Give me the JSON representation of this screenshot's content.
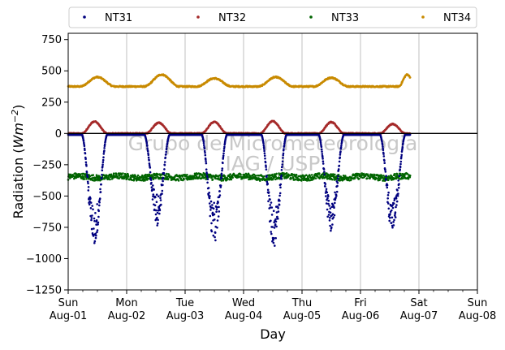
{
  "chart_data": {
    "type": "scatter",
    "xlabel": "Day",
    "ylabel_prefix": "Radiation (",
    "ylabel_unit_base": "Wm",
    "ylabel_unit_exp": "−2",
    "ylabel_suffix": ")",
    "ylim": [
      -1250,
      800
    ],
    "yticks": [
      750,
      500,
      250,
      0,
      -250,
      -500,
      -750,
      -1000,
      -1250
    ],
    "ytick_labels": [
      "750",
      "500",
      "250",
      "0",
      "−250",
      "−500",
      "−750",
      "−1000",
      "−1250"
    ],
    "xlim": [
      0,
      7
    ],
    "xticks": [
      {
        "x": 0,
        "day": "Sun",
        "date": "Aug-01"
      },
      {
        "x": 1,
        "day": "Mon",
        "date": "Aug-02"
      },
      {
        "x": 2,
        "day": "Tue",
        "date": "Aug-03"
      },
      {
        "x": 3,
        "day": "Wed",
        "date": "Aug-04"
      },
      {
        "x": 4,
        "day": "Thu",
        "date": "Aug-05"
      },
      {
        "x": 5,
        "day": "Fri",
        "date": "Aug-06"
      },
      {
        "x": 6,
        "day": "Sat",
        "date": "Aug-07"
      },
      {
        "x": 7,
        "day": "Sun",
        "date": "Aug-08"
      }
    ],
    "grid": "vertical",
    "zero_line": true,
    "legend_position": "top",
    "watermark": [
      "Grupo de Micrometeorologia",
      "IAG / USP"
    ],
    "data_end_x": 5.85,
    "series": [
      {
        "name": "NT31",
        "color": "#00007f",
        "baseline": -10,
        "day_peak_mins": [
          -900,
          -730,
          -880,
          -910,
          -800,
          -810
        ],
        "day_centers": [
          0.45,
          1.52,
          2.5,
          3.52,
          4.5,
          5.55
        ],
        "day_half_widths": [
          0.22,
          0.22,
          0.22,
          0.22,
          0.22,
          0.22
        ]
      },
      {
        "name": "NT32",
        "color": "#a52a2a",
        "baseline": 0,
        "day_peaks": [
          95,
          85,
          92,
          98,
          90,
          75
        ],
        "day_centers": [
          0.45,
          1.55,
          2.5,
          3.5,
          4.5,
          5.55
        ],
        "day_half_widths": [
          0.22,
          0.22,
          0.22,
          0.22,
          0.22,
          0.22
        ]
      },
      {
        "name": "NT33",
        "color": "#006400",
        "baseline": -340,
        "range": [
          -390,
          -305
        ]
      },
      {
        "name": "NT34",
        "color": "#c88a00",
        "baseline": 375,
        "day_peaks": [
          450,
          470,
          440,
          450,
          445,
          470
        ],
        "day_centers": [
          0.5,
          1.6,
          2.5,
          3.55,
          4.5,
          5.8
        ],
        "day_half_widths": [
          0.3,
          0.3,
          0.3,
          0.3,
          0.3,
          0.15
        ]
      }
    ]
  }
}
